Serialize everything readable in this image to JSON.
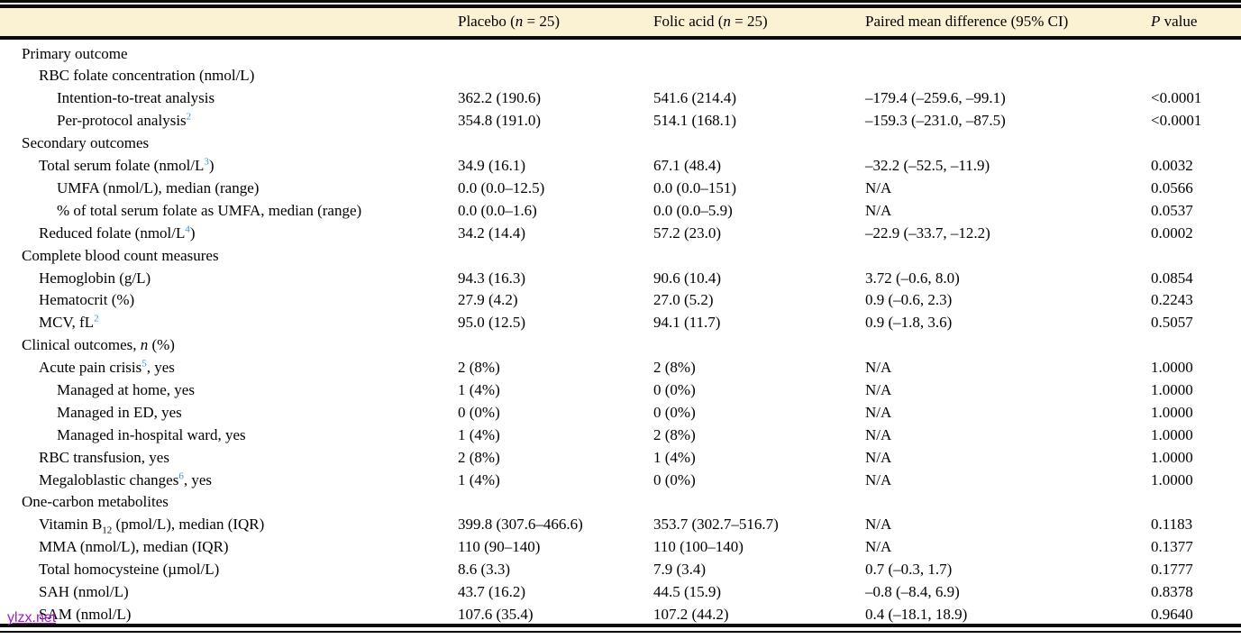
{
  "colors": {
    "header_bg": "#FBF1D3",
    "superscript_blue": "#3D92D3",
    "watermark_purple": "#A21CCE",
    "rule_black": "#0B0B0B"
  },
  "header": {
    "columns": [
      {
        "id": "outcome",
        "label": ""
      },
      {
        "id": "placebo",
        "label": [
          "Placebo (",
          {
            "t": "n",
            "style": "it"
          },
          " = 25)"
        ]
      },
      {
        "id": "folic-acid",
        "label": [
          "Folic acid (",
          {
            "t": "n",
            "style": "it"
          },
          " = 25)"
        ]
      },
      {
        "id": "paired-mean-difference",
        "label": "Paired mean difference (95% CI)"
      },
      {
        "id": "p-value",
        "label": [
          {
            "t": "P",
            "style": "it"
          },
          " value"
        ]
      }
    ]
  },
  "rows": [
    {
      "indent": 0,
      "label": "Primary outcome",
      "placebo": "",
      "folic": "",
      "diff": "",
      "p": ""
    },
    {
      "indent": 1,
      "label": "RBC folate concentration (nmol/L)",
      "placebo": "",
      "folic": "",
      "diff": "",
      "p": ""
    },
    {
      "indent": 2,
      "label": "Intention-to-treat analysis",
      "placebo": "362.2 (190.6)",
      "folic": "541.6 (214.4)",
      "diff": "–179.4 (–259.6, –99.1)",
      "p": "<0.0001"
    },
    {
      "indent": 2,
      "label": [
        "Per-protocol analysis",
        {
          "t": "2",
          "style": "sup"
        }
      ],
      "placebo": "354.8 (191.0)",
      "folic": "514.1 (168.1)",
      "diff": "–159.3 (–231.0, –87.5)",
      "p": "<0.0001"
    },
    {
      "indent": 0,
      "label": "Secondary outcomes",
      "placebo": "",
      "folic": "",
      "diff": "",
      "p": ""
    },
    {
      "indent": 1,
      "label": [
        "Total serum folate (nmol/L",
        {
          "t": "3",
          "style": "sup"
        },
        ")"
      ],
      "placebo": "34.9 (16.1)",
      "folic": "67.1 (48.4)",
      "diff": "–32.2 (–52.5, –11.9)",
      "p": "0.0032"
    },
    {
      "indent": 2,
      "label": "UMFA (nmol/L), median (range)",
      "placebo": "0.0 (0.0–12.5)",
      "folic": "0.0 (0.0–151)",
      "diff": "N/A",
      "p": "0.0566"
    },
    {
      "indent": 2,
      "label": "% of total serum folate as UMFA, median (range)",
      "placebo": "0.0 (0.0–1.6)",
      "folic": "0.0 (0.0–5.9)",
      "diff": "N/A",
      "p": "0.0537"
    },
    {
      "indent": 1,
      "label": [
        "Reduced folate (nmol/L",
        {
          "t": "4",
          "style": "sup"
        },
        ")"
      ],
      "placebo": "34.2 (14.4)",
      "folic": "57.2 (23.0)",
      "diff": "–22.9 (–33.7, –12.2)",
      "p": "0.0002"
    },
    {
      "indent": 0,
      "label": "Complete blood count measures",
      "placebo": "",
      "folic": "",
      "diff": "",
      "p": ""
    },
    {
      "indent": 1,
      "label": "Hemoglobin (g/L)",
      "placebo": "94.3 (16.3)",
      "folic": "90.6 (10.4)",
      "diff": "3.72 (–0.6, 8.0)",
      "p": "0.0854"
    },
    {
      "indent": 1,
      "label": "Hematocrit (%)",
      "placebo": "27.9 (4.2)",
      "folic": "27.0 (5.2)",
      "diff": "0.9 (–0.6, 2.3)",
      "p": "0.2243"
    },
    {
      "indent": 1,
      "label": [
        "MCV, fL",
        {
          "t": "2",
          "style": "sup"
        }
      ],
      "placebo": "95.0 (12.5)",
      "folic": "94.1 (11.7)",
      "diff": "0.9 (–1.8, 3.6)",
      "p": "0.5057"
    },
    {
      "indent": 0,
      "label": [
        "Clinical outcomes, ",
        {
          "t": "n",
          "style": "it"
        },
        " (%)"
      ],
      "placebo": "",
      "folic": "",
      "diff": "",
      "p": ""
    },
    {
      "indent": 1,
      "label": [
        "Acute pain crisis",
        {
          "t": "5",
          "style": "sup"
        },
        ", yes"
      ],
      "placebo": "2 (8%)",
      "folic": "2 (8%)",
      "diff": "N/A",
      "p": "1.0000"
    },
    {
      "indent": 2,
      "label": "Managed at home, yes",
      "placebo": "1 (4%)",
      "folic": "0 (0%)",
      "diff": "N/A",
      "p": "1.0000"
    },
    {
      "indent": 2,
      "label": "Managed in ED, yes",
      "placebo": "0 (0%)",
      "folic": "0 (0%)",
      "diff": "N/A",
      "p": "1.0000"
    },
    {
      "indent": 2,
      "label": "Managed in-hospital ward, yes",
      "placebo": "1 (4%)",
      "folic": "2 (8%)",
      "diff": "N/A",
      "p": "1.0000"
    },
    {
      "indent": 1,
      "label": "RBC transfusion, yes",
      "placebo": "2 (8%)",
      "folic": "1 (4%)",
      "diff": "N/A",
      "p": "1.0000"
    },
    {
      "indent": 1,
      "label": [
        "Megaloblastic changes",
        {
          "t": "6",
          "style": "sup"
        },
        ", yes"
      ],
      "placebo": "1 (4%)",
      "folic": "0 (0%)",
      "diff": "N/A",
      "p": "1.0000"
    },
    {
      "indent": 0,
      "label": "One-carbon metabolites",
      "placebo": "",
      "folic": "",
      "diff": "",
      "p": ""
    },
    {
      "indent": 1,
      "label": [
        "Vitamin B",
        {
          "t": "12",
          "style": "sub"
        },
        " (pmol/L), median (IQR)"
      ],
      "placebo": "399.8 (307.6–466.6)",
      "folic": "353.7 (302.7–516.7)",
      "diff": "N/A",
      "p": "0.1183"
    },
    {
      "indent": 1,
      "label": "MMA (nmol/L), median (IQR)",
      "placebo": "110 (90–140)",
      "folic": "110 (100–140)",
      "diff": "N/A",
      "p": "0.1377"
    },
    {
      "indent": 1,
      "label": "Total homocysteine (µmol/L)",
      "placebo": "8.6 (3.3)",
      "folic": "7.9 (3.4)",
      "diff": "0.7 (–0.3, 1.7)",
      "p": "0.1777"
    },
    {
      "indent": 1,
      "label": "SAH (nmol/L)",
      "placebo": "43.7 (16.2)",
      "folic": "44.5 (15.9)",
      "diff": "–0.8 (–8.4, 6.9)",
      "p": "0.8378"
    },
    {
      "indent": 1,
      "label": "SAM (nmol/L)",
      "placebo": "107.6 (35.4)",
      "folic": "107.2 (44.2)",
      "diff": "0.4 (–18.1, 18.9)",
      "p": "0.9640"
    }
  ],
  "watermark": {
    "text": "ylzx.net"
  }
}
